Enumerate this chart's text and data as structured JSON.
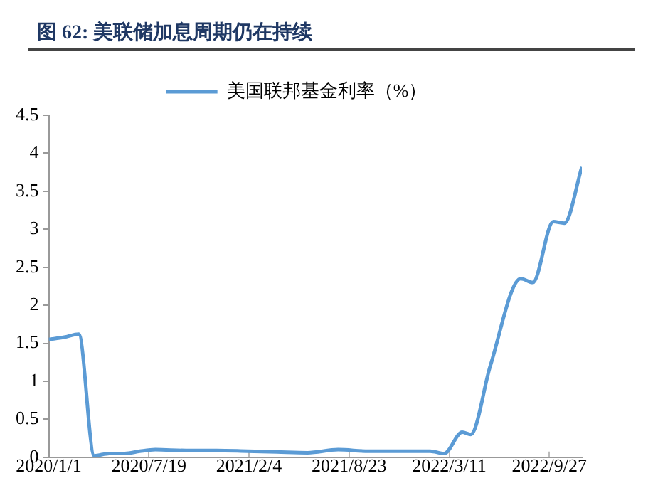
{
  "chart_data": {
    "type": "line",
    "title": "图 62: 美联储加息周期仍在持续",
    "x": [
      "2020-01-01",
      "2020-02-01",
      "2020-03-01",
      "2020-04-01",
      "2020-05-01",
      "2020-06-01",
      "2020-07-01",
      "2020-08-01",
      "2020-10-01",
      "2020-12-01",
      "2021-02-01",
      "2021-04-01",
      "2021-06-01",
      "2021-08-01",
      "2021-10-01",
      "2021-12-01",
      "2022-02-01",
      "2022-03-01",
      "2022-04-06",
      "2022-04-23",
      "2022-06-01",
      "2022-08-01",
      "2022-08-25",
      "2022-10-05",
      "2022-10-27",
      "2022-12-01"
    ],
    "series": [
      {
        "name": "美国联邦基金利率（%）",
        "color": "#5b9bd5",
        "values": [
          1.55,
          1.58,
          1.62,
          0.02,
          0.05,
          0.05,
          0.08,
          0.1,
          0.09,
          0.09,
          0.08,
          0.07,
          0.06,
          0.1,
          0.08,
          0.08,
          0.08,
          0.05,
          0.33,
          0.3,
          1.2,
          2.35,
          2.3,
          3.1,
          3.08,
          3.82
        ]
      }
    ],
    "xlim": [
      "2020-01-01",
      "2022-12-01"
    ],
    "xticks": [
      {
        "value": "2020-01-01",
        "label": "2020/1/1"
      },
      {
        "value": "2020-07-19",
        "label": "2020/7/19"
      },
      {
        "value": "2021-02-04",
        "label": "2021/2/4"
      },
      {
        "value": "2021-08-23",
        "label": "2021/8/23"
      },
      {
        "value": "2022-03-11",
        "label": "2022/3/11"
      },
      {
        "value": "2022-09-27",
        "label": "2022/9/27"
      }
    ],
    "ylim": [
      0,
      4.5
    ],
    "yticks": [
      0,
      0.5,
      1,
      1.5,
      2,
      2.5,
      3,
      3.5,
      4,
      4.5
    ],
    "grid": false,
    "legend": "top",
    "marker": "none",
    "line_style": "solid"
  }
}
